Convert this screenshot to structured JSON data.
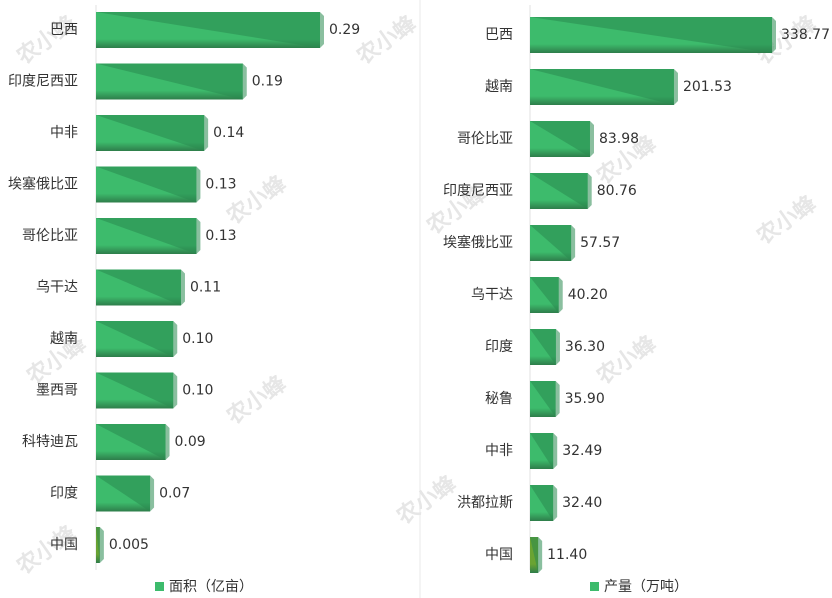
{
  "chart_data": [
    {
      "type": "hbar",
      "legend": "面积（亿亩）",
      "categories": [
        "巴西",
        "印度尼西亚",
        "中非",
        "埃塞俄比亚",
        "哥伦比亚",
        "乌干达",
        "越南",
        "墨西哥",
        "科特迪瓦",
        "印度",
        "中国"
      ],
      "values": [
        0.29,
        0.19,
        0.14,
        0.13,
        0.13,
        0.11,
        0.1,
        0.1,
        0.09,
        0.07,
        0.005
      ],
      "value_labels": [
        "0.29",
        "0.19",
        "0.14",
        "0.13",
        "0.13",
        "0.11",
        "0.10",
        "0.10",
        "0.09",
        "0.07",
        "0.005"
      ],
      "color": "#3dbb6c",
      "colors": [
        "#3dbb6c",
        "#3dbb6c",
        "#3dbb6c",
        "#3dbb6c",
        "#3dbb6c",
        "#3dbb6c",
        "#3dbb6c",
        "#3dbb6c",
        "#3dbb6c",
        "#3dbb6c",
        "#6aa332"
      ]
    },
    {
      "type": "hbar",
      "legend": "产量（万吨）",
      "categories": [
        "巴西",
        "越南",
        "哥伦比亚",
        "印度尼西亚",
        "埃塞俄比亚",
        "乌干达",
        "印度",
        "秘鲁",
        "中非",
        "洪都拉斯",
        "中国"
      ],
      "values": [
        338.77,
        201.53,
        83.98,
        80.76,
        57.57,
        40.2,
        36.3,
        35.9,
        32.49,
        32.4,
        11.4
      ],
      "value_labels": [
        "338.77",
        "201.53",
        "83.98",
        "80.76",
        "57.57",
        "40.20",
        "36.30",
        "35.90",
        "32.49",
        "32.40",
        "11.40"
      ],
      "color": "#3dbb6c",
      "colors": [
        "#3dbb6c",
        "#3dbb6c",
        "#3dbb6c",
        "#3dbb6c",
        "#3dbb6c",
        "#3dbb6c",
        "#3dbb6c",
        "#3dbb6c",
        "#3dbb6c",
        "#3dbb6c",
        "#6aa332"
      ]
    }
  ],
  "watermark": "农小蜂"
}
